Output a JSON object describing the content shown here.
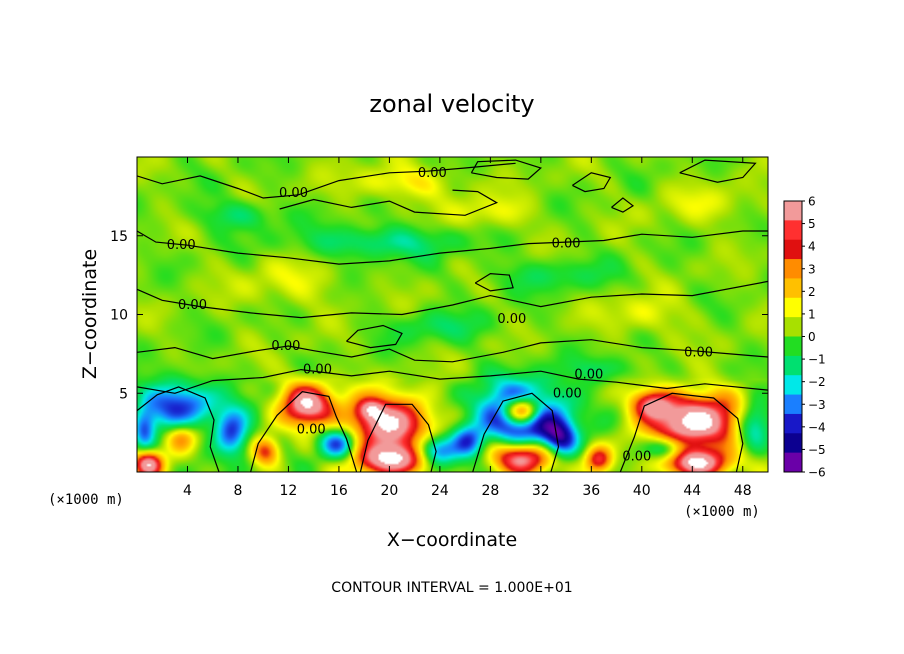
{
  "chart_data": {
    "type": "heatmap",
    "title": "zonal velocity",
    "xlabel": "X−coordinate",
    "ylabel": "Z−coordinate",
    "x_unit_left": "(×1000 m)",
    "x_unit_right": "(×1000 m)",
    "xlim": [
      0,
      50
    ],
    "ylim": [
      0,
      20
    ],
    "x_ticks": [
      4,
      8,
      12,
      16,
      20,
      24,
      28,
      32,
      36,
      40,
      44,
      48
    ],
    "x_tick_labels": [
      "4",
      "8",
      "12",
      "16",
      "20",
      "24",
      "28",
      "32",
      "36",
      "40",
      "44",
      "48"
    ],
    "y_ticks": [
      5,
      10,
      15
    ],
    "y_tick_labels": [
      "5",
      "10",
      "15"
    ],
    "colorbar": {
      "ticks": [
        6,
        5,
        4,
        3,
        2,
        1,
        0,
        -1,
        -2,
        -3,
        -4,
        -5,
        -6
      ],
      "tick_labels": [
        "6",
        "5",
        "4",
        "3",
        "2",
        "1",
        "0",
        "−1",
        "−2",
        "−3",
        "−4",
        "−5",
        "−6"
      ],
      "colors_high_to_low": [
        "#f29a9a",
        "#ff3030",
        "#e01010",
        "#ff8c00",
        "#ffc000",
        "#ffff00",
        "#a8e000",
        "#22dd22",
        "#00e070",
        "#00e8e8",
        "#1a7fff",
        "#1818c8",
        "#0c0090",
        "#6a00a8"
      ]
    },
    "contour_labels": [
      {
        "text": "0.00",
        "x": 23.4,
        "y": 19.0
      },
      {
        "text": "0.00",
        "x": 12.4,
        "y": 17.7
      },
      {
        "text": "0.00",
        "x": 3.5,
        "y": 14.4
      },
      {
        "text": "0.00",
        "x": 34.0,
        "y": 14.5
      },
      {
        "text": "0.00",
        "x": 4.4,
        "y": 10.6
      },
      {
        "text": "0.00",
        "x": 29.7,
        "y": 9.7
      },
      {
        "text": "0.00",
        "x": 11.8,
        "y": 8.0
      },
      {
        "text": "0.00",
        "x": 14.3,
        "y": 6.5
      },
      {
        "text": "0.00",
        "x": 35.8,
        "y": 6.2
      },
      {
        "text": "0.00",
        "x": 44.5,
        "y": 7.6
      },
      {
        "text": "0.00",
        "x": 34.1,
        "y": 5.0
      },
      {
        "text": "0.00",
        "x": 13.8,
        "y": 2.7
      },
      {
        "text": "0.00",
        "x": 39.6,
        "y": 1.0
      }
    ],
    "blobs": [
      {
        "x": 3.3,
        "y": 4.3,
        "v": -4.2,
        "rx": 2.8,
        "ry": 1.5
      },
      {
        "x": 3.5,
        "y": 2.2,
        "v": 3.3,
        "rx": 1.2,
        "ry": 0.9
      },
      {
        "x": 7.5,
        "y": 2.5,
        "v": -4.2,
        "rx": 1.4,
        "ry": 1.6
      },
      {
        "x": 10.2,
        "y": 1.3,
        "v": 4.3,
        "rx": 1.1,
        "ry": 0.9
      },
      {
        "x": 13.5,
        "y": 4.3,
        "v": 6.8,
        "rx": 2.0,
        "ry": 1.3
      },
      {
        "x": 18.5,
        "y": 4.0,
        "v": 3.0,
        "rx": 1.0,
        "ry": 0.6
      },
      {
        "x": 19.8,
        "y": 3.1,
        "v": 7.2,
        "rx": 3.3,
        "ry": 1.6
      },
      {
        "x": 16.0,
        "y": 1.8,
        "v": -4.5,
        "rx": 1.6,
        "ry": 1.1
      },
      {
        "x": 20.2,
        "y": 0.8,
        "v": 7.0,
        "rx": 3.0,
        "ry": 1.0
      },
      {
        "x": 23.5,
        "y": 1.3,
        "v": -4.8,
        "rx": 1.8,
        "ry": 1.0
      },
      {
        "x": 26.3,
        "y": 2.0,
        "v": -3.5,
        "rx": 1.3,
        "ry": 1.1
      },
      {
        "x": 30.5,
        "y": 3.7,
        "v": -7.5,
        "rx": 3.2,
        "ry": 1.8
      },
      {
        "x": 30.5,
        "y": 3.9,
        "v": 9.5,
        "rx": 1.5,
        "ry": 0.9
      },
      {
        "x": 30.6,
        "y": 0.9,
        "v": 6.5,
        "rx": 2.4,
        "ry": 1.0
      },
      {
        "x": 33.6,
        "y": 2.1,
        "v": -4.5,
        "rx": 1.4,
        "ry": 1.2
      },
      {
        "x": 36.6,
        "y": 0.8,
        "v": 4.2,
        "rx": 1.0,
        "ry": 0.8
      },
      {
        "x": 40.8,
        "y": 4.3,
        "v": 4.5,
        "rx": 1.6,
        "ry": 0.9
      },
      {
        "x": 44.2,
        "y": 3.2,
        "v": 7.8,
        "rx": 3.6,
        "ry": 1.7
      },
      {
        "x": 48.8,
        "y": 3.0,
        "v": -3.8,
        "rx": 1.4,
        "ry": 1.4
      },
      {
        "x": 42.0,
        "y": 1.5,
        "v": -4.0,
        "rx": 1.6,
        "ry": 0.8
      },
      {
        "x": 44.4,
        "y": 0.6,
        "v": 7.0,
        "rx": 2.6,
        "ry": 0.9
      },
      {
        "x": 0.9,
        "y": 0.5,
        "v": 6.5,
        "rx": 1.1,
        "ry": 0.8
      },
      {
        "x": 0.6,
        "y": 2.7,
        "v": -3.5,
        "rx": 0.9,
        "ry": 1.3
      },
      {
        "x": 19.0,
        "y": 14.6,
        "v": -1.8,
        "rx": 6.0,
        "ry": 1.0
      },
      {
        "x": 8.0,
        "y": 16.3,
        "v": -1.4,
        "rx": 3.0,
        "ry": 0.9
      },
      {
        "x": 33.0,
        "y": 12.5,
        "v": -1.0,
        "rx": 5.0,
        "ry": 1.0
      },
      {
        "x": 24.0,
        "y": 9.2,
        "v": -1.1,
        "rx": 4.0,
        "ry": 1.0
      },
      {
        "x": 21.0,
        "y": 18.4,
        "v": 1.5,
        "rx": 4.0,
        "ry": 1.0
      },
      {
        "x": 28.0,
        "y": 16.5,
        "v": 1.2,
        "rx": 3.0,
        "ry": 1.0
      },
      {
        "x": 12.0,
        "y": 12.0,
        "v": 0.9,
        "rx": 4.0,
        "ry": 1.4
      },
      {
        "x": 40.0,
        "y": 10.0,
        "v": 1.1,
        "rx": 3.0,
        "ry": 1.2
      },
      {
        "x": 45.0,
        "y": 17.0,
        "v": 0.8,
        "rx": 4.0,
        "ry": 1.2
      },
      {
        "x": 37.0,
        "y": 6.5,
        "v": -1.2,
        "rx": 3.0,
        "ry": 0.8
      }
    ],
    "contour_lines": [
      [
        [
          0,
          18.8
        ],
        [
          2,
          18.3
        ],
        [
          5,
          18.8
        ],
        [
          8,
          18.0
        ],
        [
          10,
          17.4
        ],
        [
          12.8,
          17.6
        ],
        [
          16,
          18.5
        ],
        [
          20,
          19.0
        ],
        [
          23,
          19.1
        ],
        [
          26,
          19.3
        ],
        [
          30,
          19.6
        ]
      ],
      [
        [
          11.3,
          16.7
        ],
        [
          14,
          17.3
        ],
        [
          17,
          16.8
        ],
        [
          20,
          17.2
        ],
        [
          22,
          16.5
        ],
        [
          26,
          16.3
        ],
        [
          28.5,
          17.1
        ],
        [
          27,
          17.8
        ],
        [
          25,
          17.9
        ]
      ],
      [
        [
          0,
          15.3
        ],
        [
          1.5,
          14.6
        ],
        [
          4,
          14.4
        ],
        [
          8,
          13.9
        ],
        [
          12,
          13.6
        ],
        [
          16,
          13.2
        ],
        [
          20,
          13.4
        ],
        [
          24,
          13.9
        ],
        [
          28,
          14.2
        ],
        [
          31,
          14.5
        ],
        [
          34,
          14.6
        ],
        [
          37,
          14.7
        ],
        [
          40,
          15.1
        ],
        [
          44,
          14.9
        ],
        [
          48,
          15.3
        ],
        [
          50,
          15.3
        ]
      ],
      [
        [
          0,
          11.6
        ],
        [
          2,
          10.9
        ],
        [
          5,
          10.5
        ],
        [
          9,
          10.1
        ],
        [
          13,
          9.8
        ],
        [
          17,
          10.1
        ],
        [
          21,
          10.0
        ],
        [
          25,
          10.6
        ],
        [
          28,
          11.2
        ],
        [
          32,
          10.5
        ],
        [
          36,
          11.1
        ],
        [
          40,
          11.3
        ],
        [
          44,
          11.2
        ],
        [
          50,
          12.1
        ]
      ],
      [
        [
          0,
          7.6
        ],
        [
          3,
          7.9
        ],
        [
          6,
          7.2
        ],
        [
          9.5,
          7.7
        ],
        [
          12,
          8.0
        ],
        [
          14,
          7.7
        ],
        [
          17,
          7.3
        ],
        [
          20,
          7.8
        ],
        [
          22,
          7.1
        ],
        [
          25,
          7.0
        ],
        [
          29,
          7.6
        ],
        [
          32,
          8.2
        ],
        [
          36,
          8.4
        ],
        [
          40,
          7.9
        ],
        [
          44,
          7.7
        ],
        [
          47,
          7.5
        ],
        [
          50,
          7.3
        ]
      ],
      [
        [
          0,
          5.4
        ],
        [
          3,
          5.0
        ],
        [
          6,
          5.8
        ],
        [
          10,
          6.0
        ],
        [
          13,
          6.5
        ],
        [
          17,
          6.1
        ],
        [
          20,
          6.4
        ],
        [
          24,
          5.9
        ],
        [
          28,
          6.1
        ],
        [
          32,
          6.4
        ],
        [
          35,
          5.9
        ],
        [
          38,
          5.7
        ],
        [
          42,
          5.3
        ],
        [
          45,
          5.6
        ],
        [
          50,
          5.2
        ]
      ],
      [
        [
          0,
          3.9
        ],
        [
          1.6,
          4.9
        ],
        [
          3.3,
          5.4
        ],
        [
          5.4,
          4.7
        ],
        [
          6.1,
          3.3
        ],
        [
          5.8,
          1.6
        ],
        [
          6.5,
          0
        ]
      ],
      [
        [
          9.0,
          0
        ],
        [
          9.6,
          1.8
        ],
        [
          11.1,
          3.6
        ],
        [
          13.1,
          5.1
        ],
        [
          15.2,
          4.8
        ],
        [
          15.8,
          3.5
        ],
        [
          16.6,
          2.1
        ],
        [
          17.4,
          0
        ]
      ],
      [
        [
          17.7,
          0
        ],
        [
          18.3,
          2.0
        ],
        [
          19.7,
          4.3
        ],
        [
          21.8,
          4.3
        ],
        [
          23.1,
          3.0
        ],
        [
          23.7,
          1.3
        ],
        [
          23.3,
          0
        ]
      ],
      [
        [
          26.6,
          0
        ],
        [
          27.5,
          2.4
        ],
        [
          29.0,
          4.5
        ],
        [
          31.3,
          5.0
        ],
        [
          32.9,
          3.9
        ],
        [
          33.4,
          1.6
        ],
        [
          32.8,
          0
        ]
      ],
      [
        [
          38.3,
          0
        ],
        [
          39.4,
          2.2
        ],
        [
          40.2,
          4.2
        ],
        [
          42.4,
          5.0
        ],
        [
          45.7,
          4.7
        ],
        [
          47.6,
          3.4
        ],
        [
          48.0,
          1.8
        ],
        [
          47.5,
          0
        ]
      ],
      [
        [
          26.5,
          19.0
        ],
        [
          28.5,
          18.7
        ],
        [
          31,
          18.6
        ],
        [
          32,
          19.3
        ],
        [
          30,
          19.8
        ],
        [
          27,
          19.7
        ],
        [
          26.5,
          19.0
        ]
      ],
      [
        [
          34.5,
          18.2
        ],
        [
          35.5,
          17.8
        ],
        [
          37,
          18.0
        ],
        [
          37.5,
          18.7
        ],
        [
          36,
          19.0
        ],
        [
          34.5,
          18.2
        ]
      ],
      [
        [
          43.0,
          19.0
        ],
        [
          46,
          18.4
        ],
        [
          48,
          18.7
        ],
        [
          49,
          19.6
        ],
        [
          45,
          19.8
        ],
        [
          43.0,
          19.0
        ]
      ],
      [
        [
          26.8,
          12.0
        ],
        [
          28,
          11.5
        ],
        [
          29.8,
          11.7
        ],
        [
          29.5,
          12.5
        ],
        [
          28.0,
          12.6
        ],
        [
          26.8,
          12.0
        ]
      ],
      [
        [
          16.6,
          8.3
        ],
        [
          18.5,
          7.9
        ],
        [
          20.5,
          8.1
        ],
        [
          21.0,
          8.8
        ],
        [
          19.5,
          9.3
        ],
        [
          17.5,
          9.0
        ],
        [
          16.6,
          8.3
        ]
      ],
      [
        [
          37.6,
          16.8
        ],
        [
          38.5,
          16.5
        ],
        [
          39.3,
          16.9
        ],
        [
          38.5,
          17.4
        ],
        [
          37.6,
          16.8
        ]
      ]
    ]
  },
  "footer": {
    "contour_interval": "CONTOUR INTERVAL = 1.000E+01"
  }
}
